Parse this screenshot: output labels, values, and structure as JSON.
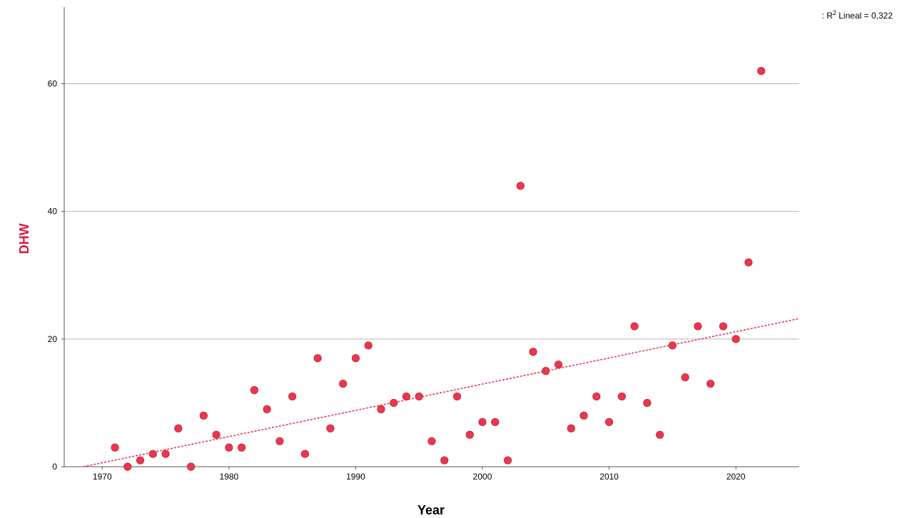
{
  "chart_data": {
    "type": "scatter",
    "title": "",
    "xlabel": "Year",
    "ylabel": "DHW",
    "xlim": [
      1967,
      2025
    ],
    "ylim": [
      0,
      72
    ],
    "xticks": [
      1970,
      1980,
      1990,
      2000,
      2010,
      2020
    ],
    "yticks": [
      0,
      20,
      40,
      60
    ],
    "xtick_labels": [
      "1970",
      "1980",
      "1990",
      "2000",
      "2010",
      "2020"
    ],
    "ytick_labels": [
      "0",
      "20",
      "40",
      "60"
    ],
    "grid": "horizontal",
    "annotation": {
      "prefix": ": R",
      "sup": "2",
      "suffix": " Lineal = 0,322"
    },
    "colors": {
      "point": "#e8384f",
      "point_edge": "#c41f3a",
      "fit_line": "#e8384f",
      "ylabel": "#d6173c",
      "xlabel": "#000000",
      "grid": "#bdbdbd",
      "axis": "#555555"
    },
    "fit_line": {
      "x": [
        1968.5,
        2025
      ],
      "y": [
        0,
        23.2
      ]
    },
    "points": {
      "x": [
        1971,
        1972,
        1973,
        1974,
        1975,
        1976,
        1977,
        1978,
        1979,
        1980,
        1981,
        1982,
        1983,
        1984,
        1985,
        1986,
        1987,
        1988,
        1989,
        1990,
        1991,
        1992,
        1993,
        1994,
        1995,
        1996,
        1997,
        1998,
        1999,
        2000,
        2001,
        2002,
        2003,
        2004,
        2005,
        2006,
        2007,
        2008,
        2009,
        2010,
        2011,
        2012,
        2013,
        2014,
        2015,
        2016,
        2017,
        2018,
        2019,
        2020,
        2021,
        2022
      ],
      "y": [
        3,
        0,
        1,
        2,
        2,
        6,
        0,
        8,
        5,
        3,
        3,
        12,
        9,
        4,
        11,
        2,
        17,
        6,
        13,
        17,
        19,
        9,
        10,
        11,
        11,
        4,
        1,
        11,
        5,
        7,
        7,
        1,
        44,
        18,
        15,
        16,
        6,
        8,
        11,
        7,
        11,
        22,
        10,
        5,
        19,
        14,
        22,
        13,
        22,
        20,
        32,
        62
      ]
    }
  }
}
